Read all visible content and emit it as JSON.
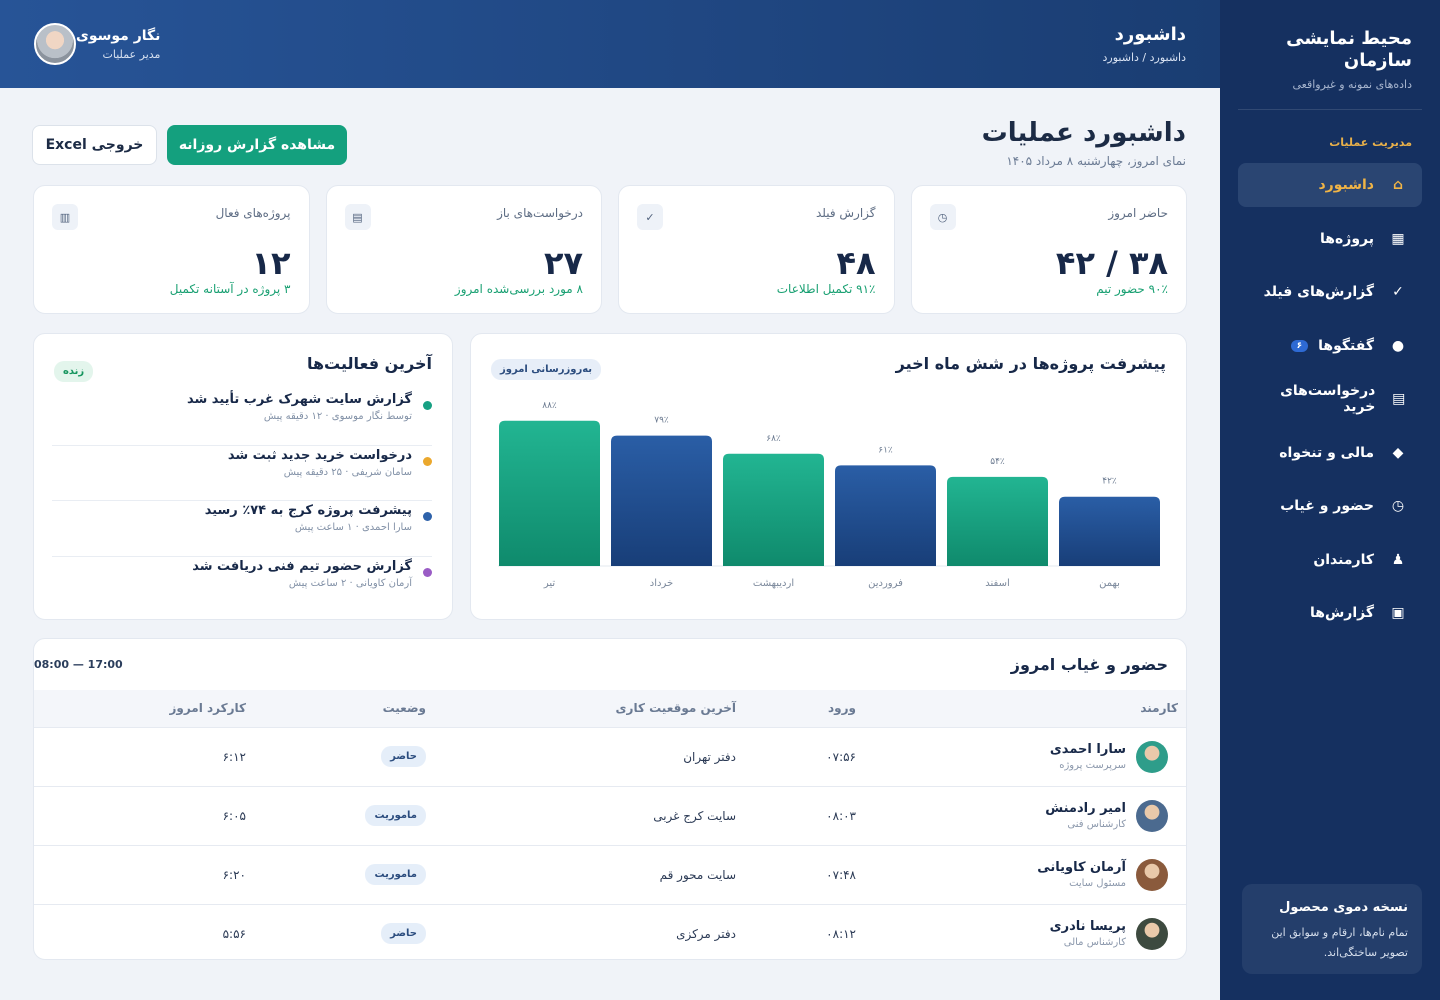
{
  "sidebar": {
    "brand_title": "محیط نمایشی سازمان",
    "brand_subtitle": "داده‌های نمونه و غیرواقعی",
    "section_label": "مدیریت عملیات",
    "items": [
      {
        "label": "داشبورد",
        "icon": "home-icon",
        "glyph": "⌂",
        "active": true
      },
      {
        "label": "پروژه‌ها",
        "icon": "projects-icon",
        "glyph": "▦"
      },
      {
        "label": "گزارش‌های فیلد",
        "icon": "check-icon",
        "glyph": "✓"
      },
      {
        "label": "گفتگوها",
        "icon": "chat-icon",
        "glyph": "●",
        "badge": "۶"
      },
      {
        "label": "درخواست‌های خرید",
        "icon": "list-icon",
        "glyph": "▤"
      },
      {
        "label": "مالی و تنخواه",
        "icon": "diamond-icon",
        "glyph": "◆"
      },
      {
        "label": "حضور و غیاب",
        "icon": "clock-icon",
        "glyph": "◷"
      },
      {
        "label": "کارمندان",
        "icon": "person-icon",
        "glyph": "♟"
      },
      {
        "label": "گزارش‌ها",
        "icon": "report-icon",
        "glyph": "▣"
      }
    ],
    "demo_title": "نسخه دموی محصول",
    "demo_text": "تمام نام‌ها، ارقام و سوابق این تصویر ساختگی‌اند."
  },
  "topbar": {
    "title": "داشبورد",
    "breadcrumb": "داشبورد / داشبورد",
    "user_name": "نگار موسوی",
    "user_role": "مدیر عملیات"
  },
  "page": {
    "title": "داشبورد عملیات",
    "date": "نمای امروز، چهارشنبه ۸ مرداد ۱۴۰۵",
    "primary_btn": "مشاهده گزارش روزانه",
    "export_btn": "خروجی Excel"
  },
  "stats": [
    {
      "label": "پروژه‌های فعال",
      "value": "۱۲",
      "note": "۳ پروژه در آستانه تکمیل",
      "icon": "▥"
    },
    {
      "label": "درخواست‌های باز",
      "value": "۲۷",
      "note": "۸ مورد بررسی‌شده امروز",
      "icon": "▤"
    },
    {
      "label": "گزارش فیلد",
      "value": "۴۸",
      "note": "۹۱٪ تکمیل اطلاعات",
      "icon": "✓"
    },
    {
      "label": "حاضر امروز",
      "value": "۳۸ / ۴۲",
      "note": "۹۰٪ حضور تیم",
      "icon": "◷"
    }
  ],
  "chart_card": {
    "title": "پیشرفت پروژه‌ها در شش ماه اخیر",
    "pill": "به‌روزرسانی امروز"
  },
  "chart_data": {
    "type": "bar",
    "categories": [
      "بهمن",
      "اسفند",
      "فروردین",
      "اردیبهشت",
      "خرداد",
      "تیر"
    ],
    "values": [
      42,
      54,
      61,
      68,
      79,
      88
    ],
    "value_labels": [
      "۴۲٪",
      "۵۴٪",
      "۶۱٪",
      "۶۸٪",
      "۷۹٪",
      "۸۸٪"
    ],
    "bar_colors": [
      "blue",
      "green",
      "blue",
      "green",
      "blue",
      "green"
    ],
    "ylim": [
      0,
      100
    ],
    "colors": {
      "green": "#17a083",
      "blue": "#1f4a8c"
    }
  },
  "activity": {
    "title": "آخرین فعالیت‌ها",
    "pill": "زنده",
    "items": [
      {
        "title": "گزارش سایت شهرک غرب تأیید شد",
        "meta": "توسط نگار موسوی · ۱۲ دقیقه پیش",
        "color": "#17a083"
      },
      {
        "title": "درخواست خرید جدید ثبت شد",
        "meta": "سامان شریفی · ۲۵ دقیقه پیش",
        "color": "#eba82d"
      },
      {
        "title": "پیشرفت پروژه کرج به ۷۴٪ رسید",
        "meta": "سارا احمدی · ۱ ساعت پیش",
        "color": "#2e62aa"
      },
      {
        "title": "گزارش حضور تیم فنی دریافت شد",
        "meta": "آرمان کاویانی · ۲ ساعت پیش",
        "color": "#9a5cc5"
      }
    ]
  },
  "attendance": {
    "title": "حضور و غیاب امروز",
    "hours": "08:00 — 17:00",
    "columns": [
      "کارمند",
      "ورود",
      "آخرین موقعیت کاری",
      "وضعیت",
      "کارکرد امروز"
    ],
    "rows": [
      {
        "name": "سارا احمدی",
        "role": "سرپرست پروژه",
        "in": "۰۷:۵۶",
        "location": "دفتر تهران",
        "status": "حاضر",
        "worked": "۶:۱۲",
        "avatar_color": "#2e9d8a"
      },
      {
        "name": "امیر رادمنش",
        "role": "کارشناس فنی",
        "in": "۰۸:۰۳",
        "location": "سایت کرج غربی",
        "status": "ماموریت",
        "worked": "۶:۰۵",
        "avatar_color": "#4b6a8f"
      },
      {
        "name": "آرمان کاویانی",
        "role": "مسئول سایت",
        "in": "۰۷:۴۸",
        "location": "سایت محور قم",
        "status": "ماموریت",
        "worked": "۶:۲۰",
        "avatar_color": "#8a5a3c"
      },
      {
        "name": "پریسا نادری",
        "role": "کارشناس مالی",
        "in": "۰۸:۱۲",
        "location": "دفتر مرکزی",
        "status": "حاضر",
        "worked": "۵:۵۶",
        "avatar_color": "#3d4a3f"
      }
    ]
  }
}
